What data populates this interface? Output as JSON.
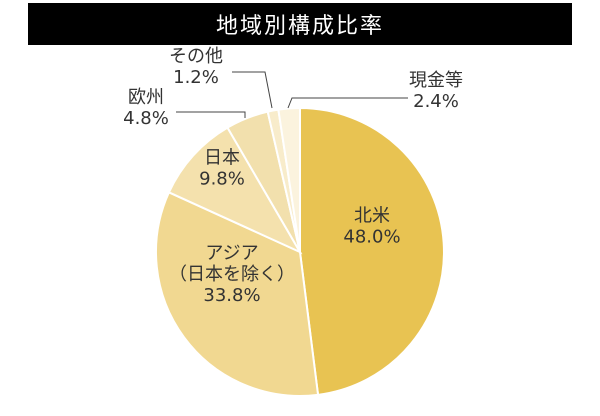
{
  "chart_data": {
    "type": "pie",
    "title": "地域別構成比率",
    "start": "12 o'clock",
    "direction": "clockwise",
    "slices": [
      {
        "name": "北米",
        "label_lines": [
          "北米"
        ],
        "value": 48.0,
        "value_label": "48.0%",
        "color": "#e8c352"
      },
      {
        "name": "アジア（日本を除く）",
        "label_lines": [
          "アジア",
          "（日本を除く）"
        ],
        "value": 33.8,
        "value_label": "33.8%",
        "color": "#f1d891"
      },
      {
        "name": "日本",
        "label_lines": [
          "日本"
        ],
        "value": 9.8,
        "value_label": "9.8%",
        "color": "#f4e1ad"
      },
      {
        "name": "欧州",
        "label_lines": [
          "欧州"
        ],
        "value": 4.8,
        "value_label": "4.8%",
        "color": "#f2e0ad"
      },
      {
        "name": "その他",
        "label_lines": [
          "その他"
        ],
        "value": 1.2,
        "value_label": "1.2%",
        "color": "#f8eccb"
      },
      {
        "name": "現金等",
        "label_lines": [
          "現金等"
        ],
        "value": 2.4,
        "value_label": "2.4%",
        "color": "#fbf3de"
      }
    ]
  }
}
